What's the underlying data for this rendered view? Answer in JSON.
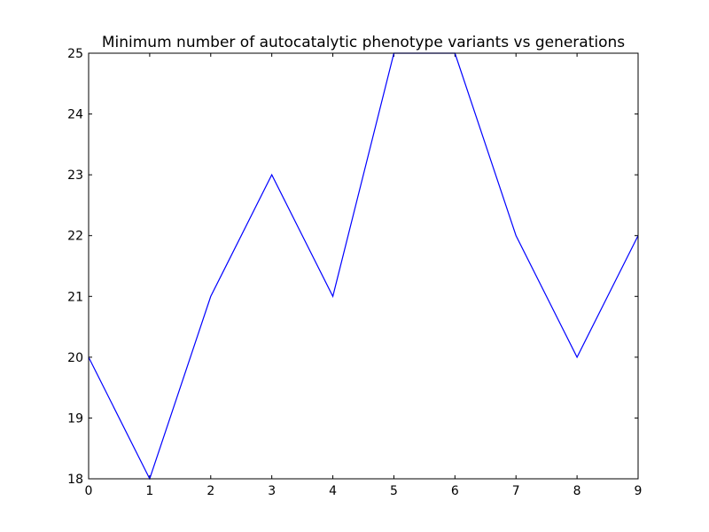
{
  "chart_data": {
    "type": "line",
    "title": "Minimum number of autocatalytic phenotype variants vs generations",
    "xlabel": "",
    "ylabel": "",
    "x": [
      0,
      1,
      2,
      3,
      4,
      5,
      6,
      7,
      8,
      9
    ],
    "series": [
      {
        "values": [
          20,
          18,
          21,
          23,
          21,
          25,
          25,
          22,
          20,
          22
        ],
        "color": "#0000ff"
      }
    ],
    "xlim": [
      0,
      9
    ],
    "ylim": [
      18,
      25
    ],
    "xticks": [
      0,
      1,
      2,
      3,
      4,
      5,
      6,
      7,
      8,
      9
    ],
    "yticks": [
      18,
      19,
      20,
      21,
      22,
      23,
      24,
      25
    ],
    "grid": false,
    "legend": "none"
  }
}
